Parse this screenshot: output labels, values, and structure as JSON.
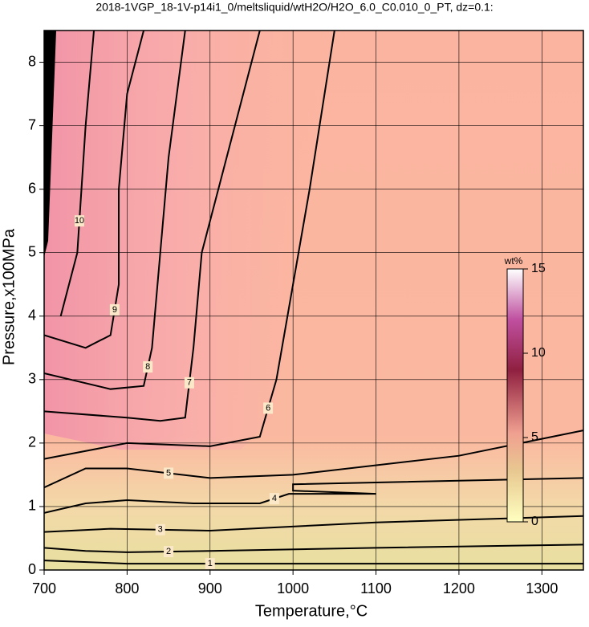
{
  "chart_data": {
    "type": "contour",
    "title": "2018-1VGP_18-1V-p14i1_0/meltsliquid/wtH2O/H2O_6.0_C0.010_0_PT, dz=0.1:",
    "x_label": "Temperature,°C",
    "y_label": "Pressure,x100MPa",
    "xlim": [
      700,
      1350
    ],
    "ylim": [
      0,
      8.5
    ],
    "xticks": [
      700,
      800,
      900,
      1000,
      1100,
      1200,
      1300
    ],
    "yticks": [
      0,
      1,
      2,
      3,
      4,
      5,
      6,
      7,
      8
    ],
    "grid": true,
    "colorbar": {
      "label": "wt%",
      "lim": [
        0,
        15
      ],
      "ticks": [
        0,
        5,
        10,
        15
      ]
    },
    "series": [
      {
        "level": 1,
        "color": "#000000",
        "x": [
          700,
          800,
          1000,
          1350
        ],
        "y": [
          0.15,
          0.1,
          0.1,
          0.1
        ]
      },
      {
        "level": 2,
        "color": "#000000",
        "x": [
          700,
          750,
          800,
          900,
          1100,
          1350
        ],
        "y": [
          0.35,
          0.3,
          0.28,
          0.3,
          0.35,
          0.4
        ]
      },
      {
        "level": 3,
        "color": "#000000",
        "x": [
          700,
          780,
          900,
          1100,
          1350
        ],
        "y": [
          0.6,
          0.65,
          0.62,
          0.75,
          0.85
        ]
      },
      {
        "level": 4,
        "color": "#000000",
        "x": [
          700,
          750,
          800,
          880,
          960,
          995,
          1100,
          1000,
          1000,
          1350
        ],
        "y": [
          0.9,
          1.05,
          1.1,
          1.05,
          1.05,
          1.2,
          1.2,
          1.25,
          1.35,
          1.45
        ]
      },
      {
        "level": 5,
        "color": "#000000",
        "x": [
          700,
          750,
          800,
          900,
          1000,
          1200,
          1350
        ],
        "y": [
          1.3,
          1.6,
          1.6,
          1.45,
          1.5,
          1.8,
          2.2
        ]
      },
      {
        "level": 6,
        "color": "#000000",
        "x": [
          700,
          800,
          900,
          960,
          980,
          1000,
          1020,
          1050
        ],
        "y": [
          1.75,
          2.0,
          1.95,
          2.1,
          3,
          4.5,
          6,
          8.5
        ]
      },
      {
        "level": 7,
        "color": "#000000",
        "x": [
          700,
          800,
          840,
          870,
          880,
          890,
          920,
          960
        ],
        "y": [
          2.5,
          2.4,
          2.35,
          2.4,
          3.5,
          5,
          6.5,
          8.5
        ]
      },
      {
        "level": 8,
        "color": "#000000",
        "x": [
          700,
          780,
          820,
          830,
          840,
          850,
          870
        ],
        "y": [
          3.1,
          2.85,
          2.9,
          3.5,
          5,
          6.5,
          8.5
        ]
      },
      {
        "level": 9,
        "color": "#000000",
        "x": [
          700,
          750,
          780,
          790,
          790,
          800,
          820
        ],
        "y": [
          3.7,
          3.5,
          3.7,
          4.5,
          6,
          7.5,
          8.5
        ]
      },
      {
        "level": 10,
        "color": "#000000",
        "x": [
          720,
          740,
          745,
          750,
          760
        ],
        "y": [
          4,
          5,
          6,
          7,
          8.5
        ]
      }
    ]
  }
}
